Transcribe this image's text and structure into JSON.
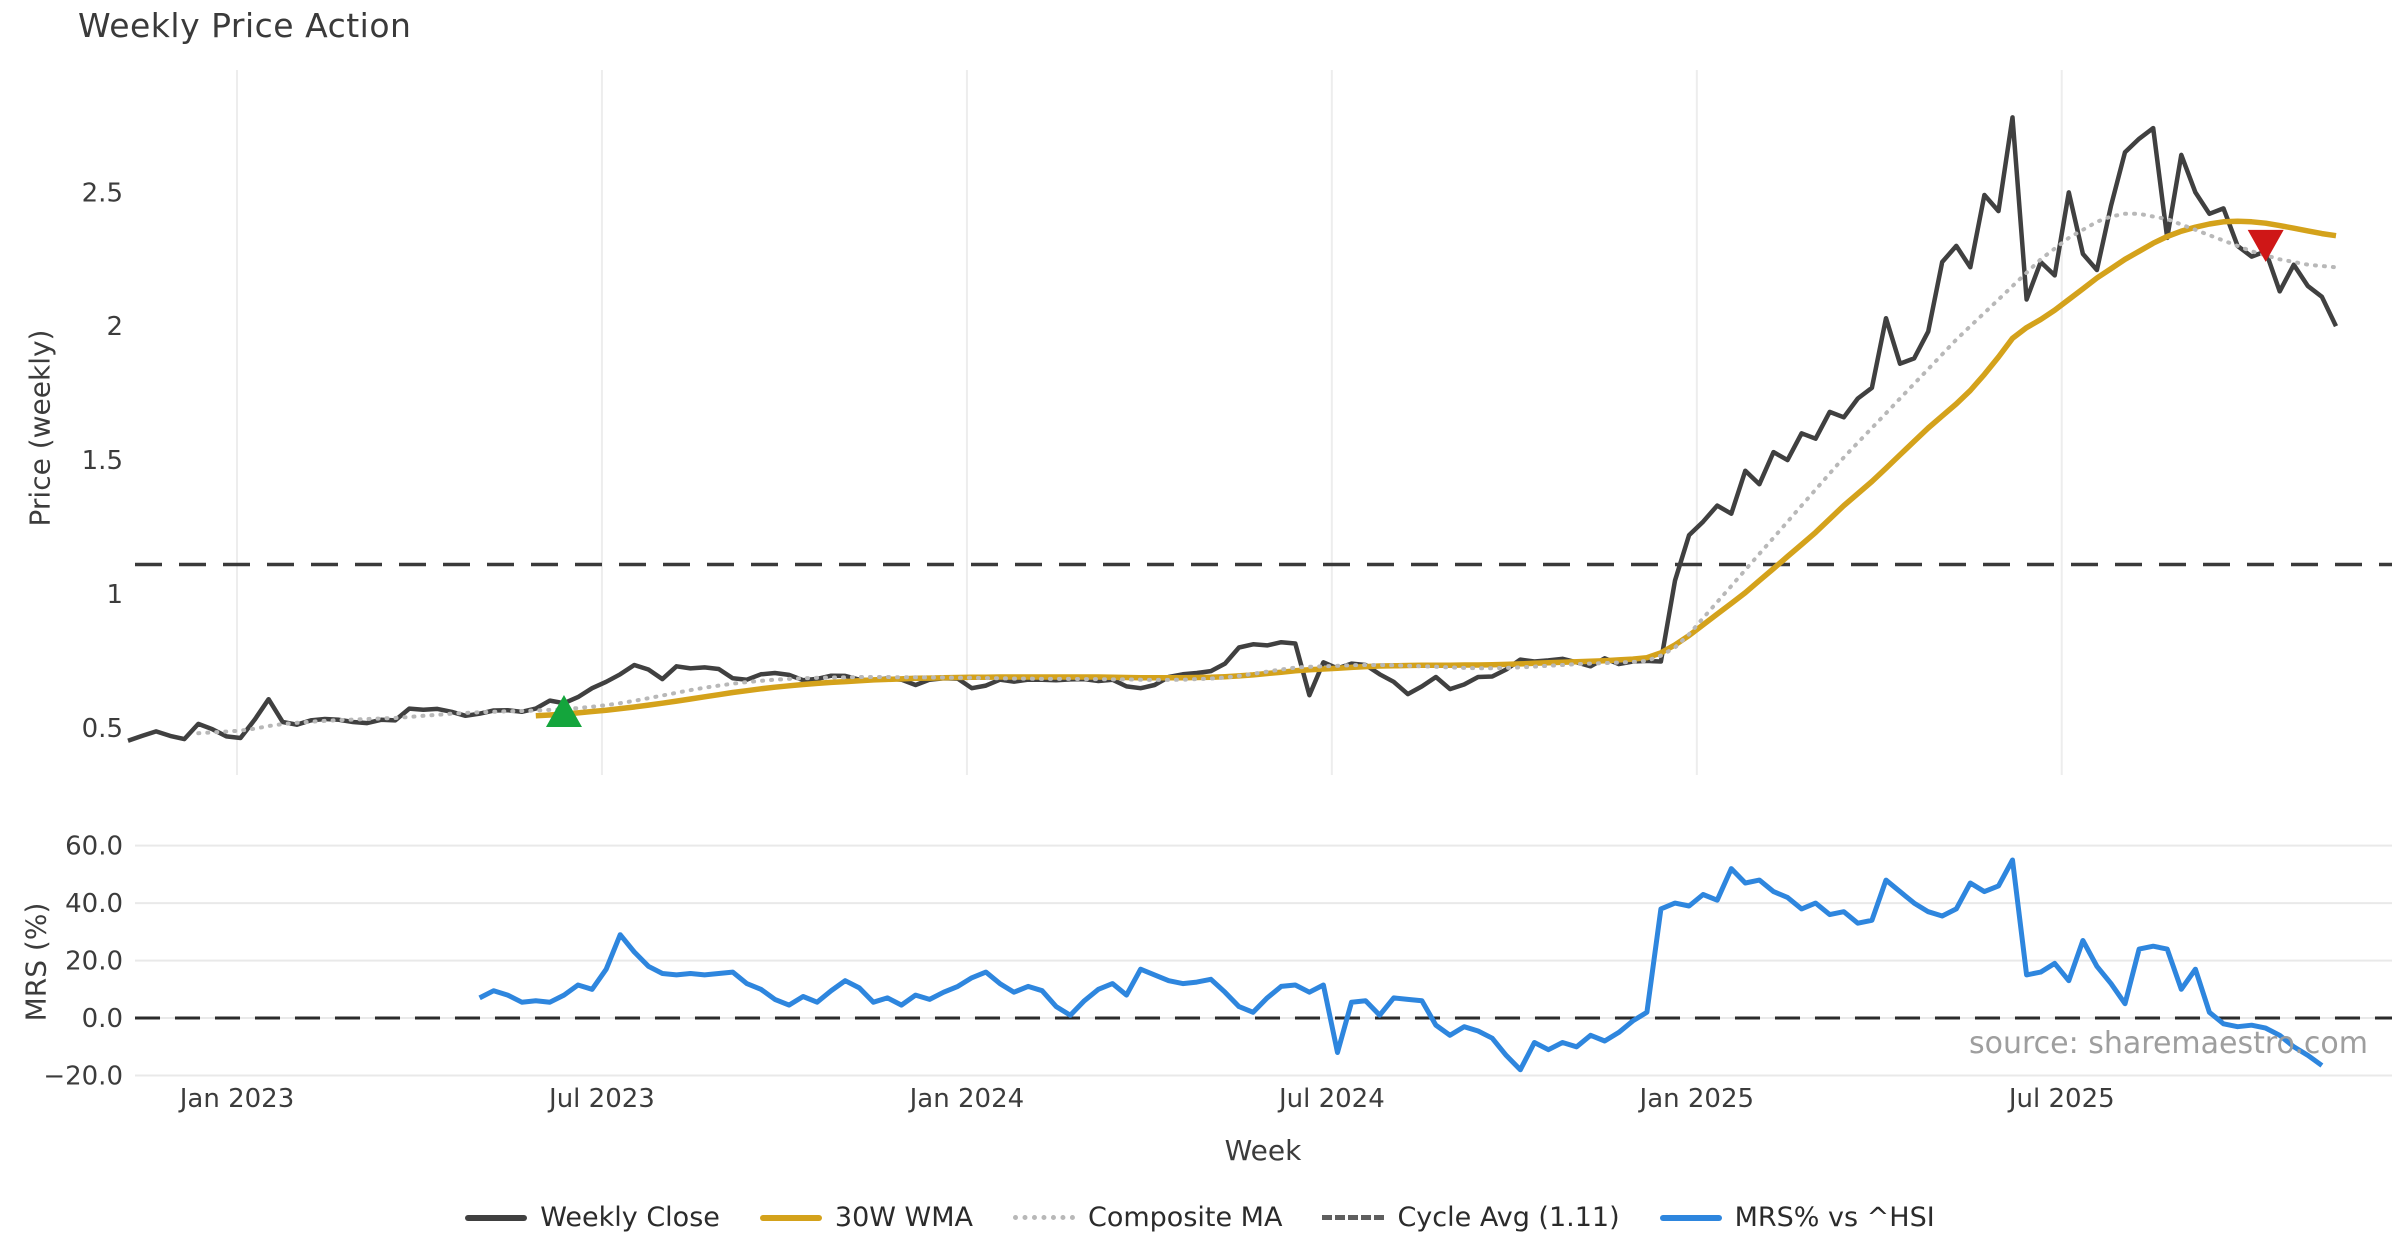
{
  "title": "Weekly Price Action",
  "watermark": "source: sharemaestro.com",
  "axis": {
    "x_label": "Week",
    "price_label": "Price (weekly)",
    "mrs_label": "MRS (%)"
  },
  "legend": {
    "position": "bottom-center",
    "items": [
      {
        "label": "Weekly Close",
        "style": "solid",
        "color": "#404040"
      },
      {
        "label": "30W WMA",
        "style": "solid",
        "color": "#d4a21b"
      },
      {
        "label": "Composite MA",
        "style": "dotted",
        "color": "#b8b8b8"
      },
      {
        "label": "Cycle Avg (1.11)",
        "style": "dashed",
        "color": "#5f5f5f"
      },
      {
        "label": "MRS% vs ^HSI",
        "style": "solid",
        "color": "#2e86de"
      }
    ]
  },
  "colors": {
    "close": "#404040",
    "wma": "#d4a21b",
    "composite": "#b8b8b8",
    "cycle": "#3a3a3a",
    "mrs": "#2e86de",
    "buy_marker": "#14a53c",
    "sell_marker": "#cf1717",
    "grid": "#ededed",
    "tick_text": "#3c3c3c",
    "zero_line": "#2b2b2b"
  },
  "chart_data": {
    "type": "line",
    "n_points": 158,
    "x_unit": "weeks (Nov 2022 – Nov 2025)",
    "xticks": [
      {
        "pos": 7.75,
        "label": "Jan 2023"
      },
      {
        "pos": 33.7,
        "label": "Jul 2023"
      },
      {
        "pos": 59.65,
        "label": "Jan 2024"
      },
      {
        "pos": 85.6,
        "label": "Jul 2024"
      },
      {
        "pos": 111.55,
        "label": "Jan 2025"
      },
      {
        "pos": 137.5,
        "label": "Jul 2025"
      }
    ],
    "panels": {
      "price": {
        "ylim": [
          0.324,
          2.957
        ],
        "yticks": [
          {
            "v": 2.5,
            "label": "2.5"
          },
          {
            "v": 2.0,
            "label": "2"
          },
          {
            "v": 1.5,
            "label": "1.5"
          },
          {
            "v": 1.0,
            "label": "1"
          },
          {
            "v": 0.5,
            "label": "0.5"
          }
        ],
        "grid": "vertical",
        "cycle_avg": {
          "value": 1.11,
          "dash": "27 17",
          "width": 3.5
        },
        "series": [
          {
            "name": "Weekly Close",
            "color": "#404040",
            "width": 4.5,
            "start": 0,
            "values": [
              0.452,
              0.47,
              0.487,
              0.47,
              0.458,
              0.515,
              0.495,
              0.468,
              0.462,
              0.53,
              0.607,
              0.522,
              0.512,
              0.528,
              0.533,
              0.53,
              0.522,
              0.518,
              0.53,
              0.528,
              0.572,
              0.568,
              0.571,
              0.56,
              0.545,
              0.553,
              0.565,
              0.566,
              0.56,
              0.572,
              0.602,
              0.592,
              0.615,
              0.648,
              0.672,
              0.7,
              0.735,
              0.718,
              0.682,
              0.73,
              0.722,
              0.726,
              0.72,
              0.685,
              0.68,
              0.7,
              0.705,
              0.698,
              0.678,
              0.683,
              0.695,
              0.694,
              0.68,
              0.678,
              0.685,
              0.68,
              0.66,
              0.68,
              0.685,
              0.684,
              0.648,
              0.658,
              0.68,
              0.673,
              0.68,
              0.68,
              0.678,
              0.681,
              0.682,
              0.675,
              0.68,
              0.655,
              0.648,
              0.66,
              0.69,
              0.7,
              0.705,
              0.712,
              0.74,
              0.8,
              0.812,
              0.808,
              0.82,
              0.815,
              0.622,
              0.745,
              0.722,
              0.74,
              0.735,
              0.7,
              0.672,
              0.626,
              0.655,
              0.69,
              0.645,
              0.662,
              0.69,
              0.692,
              0.718,
              0.755,
              0.748,
              0.752,
              0.758,
              0.745,
              0.73,
              0.76,
              0.738,
              0.748,
              0.75,
              0.748,
              1.05,
              1.22,
              1.27,
              1.33,
              1.3,
              1.46,
              1.41,
              1.53,
              1.5,
              1.6,
              1.58,
              1.68,
              1.66,
              1.73,
              1.77,
              2.03,
              1.86,
              1.88,
              1.98,
              2.24,
              2.3,
              2.22,
              2.49,
              2.43,
              2.78,
              2.1,
              2.24,
              2.19,
              2.5,
              2.27,
              2.21,
              2.45,
              2.65,
              2.7,
              2.74,
              2.33,
              2.64,
              2.5,
              2.42,
              2.44,
              2.3,
              2.26,
              2.28,
              2.13,
              2.23,
              2.15,
              2.11,
              2.0
            ]
          },
          {
            "name": "30W WMA",
            "color": "#d4a21b",
            "width": 5.5,
            "start": 29,
            "values": [
              0.545,
              0.548,
              0.552,
              0.556,
              0.561,
              0.566,
              0.572,
              0.578,
              0.585,
              0.592,
              0.6,
              0.608,
              0.616,
              0.624,
              0.632,
              0.639,
              0.646,
              0.652,
              0.657,
              0.662,
              0.666,
              0.67,
              0.673,
              0.676,
              0.679,
              0.681,
              0.683,
              0.685,
              0.686,
              0.687,
              0.688,
              0.689,
              0.689,
              0.69,
              0.69,
              0.69,
              0.69,
              0.69,
              0.69,
              0.69,
              0.69,
              0.689,
              0.688,
              0.687,
              0.687,
              0.687,
              0.687,
              0.688,
              0.689,
              0.691,
              0.694,
              0.698,
              0.703,
              0.708,
              0.713,
              0.717,
              0.72,
              0.723,
              0.726,
              0.729,
              0.731,
              0.732,
              0.733,
              0.734,
              0.734,
              0.734,
              0.735,
              0.735,
              0.736,
              0.737,
              0.739,
              0.741,
              0.743,
              0.745,
              0.747,
              0.749,
              0.751,
              0.754,
              0.757,
              0.762,
              0.78,
              0.81,
              0.845,
              0.885,
              0.925,
              0.965,
              1.005,
              1.05,
              1.095,
              1.14,
              1.185,
              1.23,
              1.28,
              1.33,
              1.375,
              1.42,
              1.47,
              1.52,
              1.57,
              1.62,
              1.665,
              1.71,
              1.76,
              1.82,
              1.885,
              1.955,
              1.995,
              2.025,
              2.06,
              2.1,
              2.14,
              2.18,
              2.215,
              2.25,
              2.28,
              2.31,
              2.335,
              2.355,
              2.37,
              2.382,
              2.39,
              2.392,
              2.39,
              2.385,
              2.376,
              2.366,
              2.356,
              2.346,
              2.338
            ]
          },
          {
            "name": "Composite MA",
            "color": "#b8b8b8",
            "width": 4,
            "dash": "1 8",
            "linecap": "round",
            "start": 5,
            "values": [
              0.48,
              0.483,
              0.486,
              0.49,
              0.497,
              0.507,
              0.514,
              0.519,
              0.523,
              0.526,
              0.529,
              0.531,
              0.533,
              0.535,
              0.537,
              0.541,
              0.545,
              0.549,
              0.553,
              0.556,
              0.558,
              0.56,
              0.562,
              0.563,
              0.565,
              0.567,
              0.57,
              0.574,
              0.579,
              0.585,
              0.592,
              0.601,
              0.611,
              0.621,
              0.631,
              0.641,
              0.65,
              0.658,
              0.665,
              0.671,
              0.676,
              0.68,
              0.683,
              0.685,
              0.687,
              0.688,
              0.689,
              0.69,
              0.69,
              0.69,
              0.689,
              0.689,
              0.688,
              0.688,
              0.687,
              0.687,
              0.686,
              0.685,
              0.684,
              0.684,
              0.683,
              0.683,
              0.683,
              0.682,
              0.682,
              0.681,
              0.681,
              0.68,
              0.679,
              0.679,
              0.68,
              0.682,
              0.684,
              0.688,
              0.694,
              0.702,
              0.71,
              0.718,
              0.725,
              0.728,
              0.73,
              0.732,
              0.734,
              0.735,
              0.735,
              0.734,
              0.732,
              0.73,
              0.728,
              0.726,
              0.724,
              0.723,
              0.723,
              0.724,
              0.726,
              0.729,
              0.732,
              0.735,
              0.738,
              0.74,
              0.742,
              0.744,
              0.746,
              0.75,
              0.77,
              0.8,
              0.85,
              0.91,
              0.97,
              1.03,
              1.09,
              1.15,
              1.21,
              1.27,
              1.33,
              1.39,
              1.45,
              1.51,
              1.565,
              1.62,
              1.675,
              1.73,
              1.785,
              1.84,
              1.895,
              1.95,
              2.0,
              2.05,
              2.1,
              2.15,
              2.2,
              2.25,
              2.29,
              2.33,
              2.36,
              2.39,
              2.41,
              2.42,
              2.42,
              2.41,
              2.4,
              2.38,
              2.36,
              2.34,
              2.32,
              2.3,
              2.28,
              2.265,
              2.25,
              2.24,
              2.23,
              2.225,
              2.22
            ]
          }
        ],
        "markers": [
          {
            "shape": "triangle-up",
            "meaning": "buy signal",
            "color": "#14a53c",
            "i": 31,
            "value": 0.563
          },
          {
            "shape": "triangle-down",
            "meaning": "sell signal",
            "color": "#cf1717",
            "i": 152,
            "value": 2.3
          }
        ]
      },
      "mrs": {
        "ylim": [
          -23.3,
          63.7
        ],
        "yticks": [
          {
            "v": 60,
            "label": "60.0"
          },
          {
            "v": 40,
            "label": "40.0"
          },
          {
            "v": 20,
            "label": "20.0"
          },
          {
            "v": 0,
            "label": "0.0"
          },
          {
            "v": -20,
            "label": "−20.0"
          }
        ],
        "grid": "horizontal",
        "zero_line": {
          "value": 0,
          "dash": "25 15",
          "width": 3
        },
        "series": [
          {
            "name": "MRS% vs ^HSI",
            "color": "#2e86de",
            "width": 5,
            "start": 25,
            "values": [
              7,
              9.5,
              8,
              5.5,
              6,
              5.5,
              8,
              11.5,
              10,
              17,
              29,
              23,
              18,
              15.5,
              15,
              15.5,
              15,
              15.5,
              16,
              12,
              10,
              6.5,
              4.5,
              7.5,
              5.5,
              9.5,
              13,
              10.5,
              5.5,
              7,
              4.5,
              8,
              6.5,
              9,
              11,
              14,
              16,
              12,
              9,
              11,
              9.5,
              4,
              1,
              6,
              10,
              12,
              8,
              17,
              15,
              13,
              12,
              12.5,
              13.5,
              9,
              4,
              2,
              7,
              11,
              11.5,
              9,
              11.5,
              -12,
              5.5,
              6,
              1,
              7,
              6.5,
              6,
              -2.5,
              -6,
              -3,
              -4.5,
              -7,
              -13,
              -18,
              -8.5,
              -11,
              -8.5,
              -10,
              -6,
              -8,
              -5,
              -1,
              2,
              38,
              40,
              39,
              43,
              41,
              52,
              47,
              48,
              44,
              42,
              38,
              40,
              36,
              37,
              33,
              34,
              48,
              44,
              40,
              37,
              35.5,
              38,
              47,
              44,
              46,
              55,
              15,
              16,
              19,
              13,
              27,
              18,
              12,
              5,
              24,
              25,
              24,
              10,
              17,
              2,
              -2,
              -3,
              -2.5,
              -3.5,
              -6,
              -10,
              -13,
              -16.5
            ]
          }
        ]
      }
    }
  }
}
